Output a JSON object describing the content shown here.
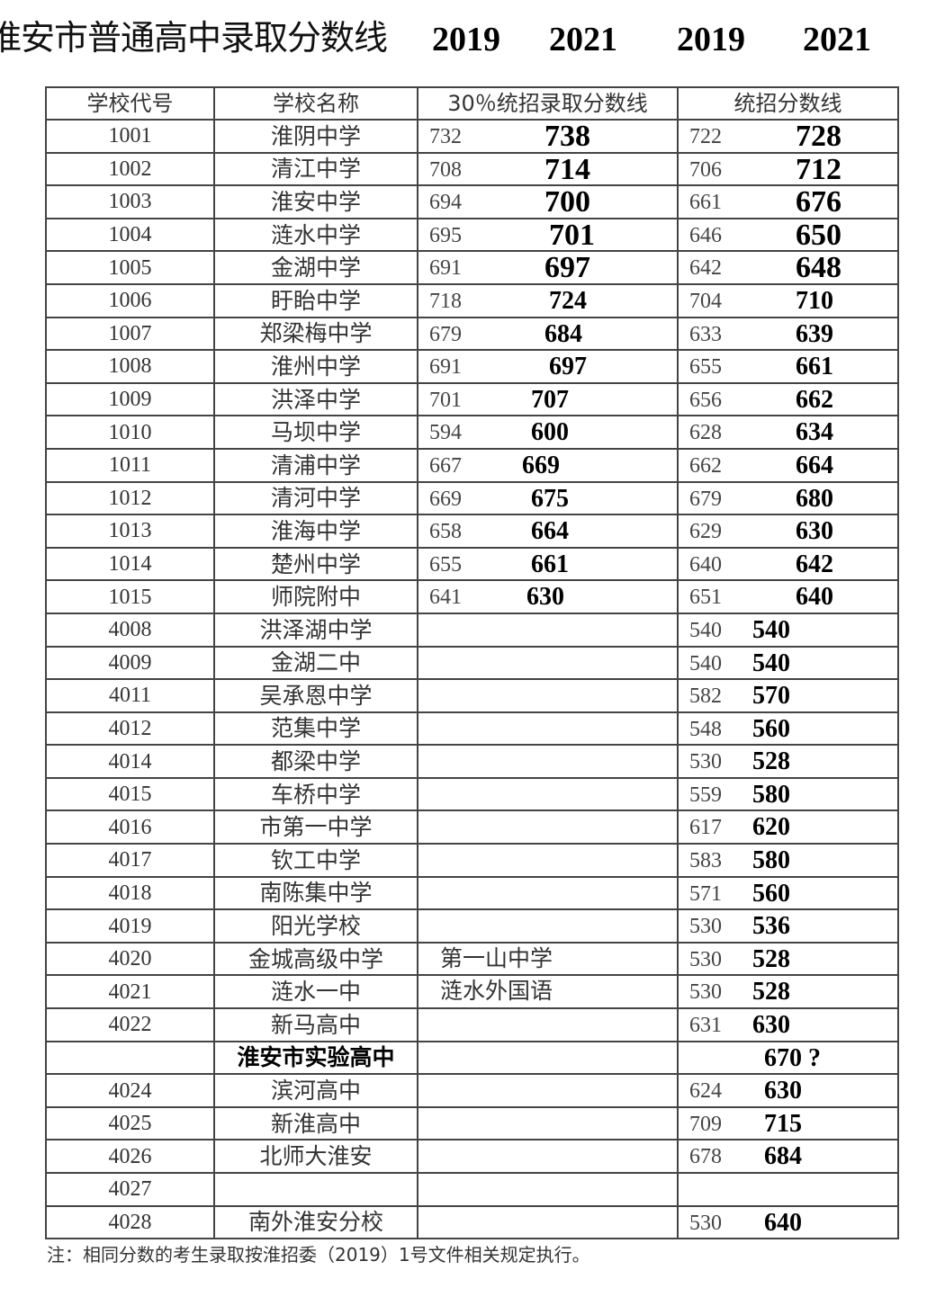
{
  "title": "淮安市普通高中录取分数线",
  "years": [
    "2019",
    "2021",
    "2019",
    "2021"
  ],
  "headers": [
    "学校代号",
    "学校名称",
    "30％统招录取分数线",
    "统招分数线"
  ],
  "rows": [
    {
      "code": "1001",
      "name": "淮阴中学",
      "p30_2019": "732",
      "p30_2021": "738",
      "t_2019": "722",
      "t_2021": "728"
    },
    {
      "code": "1002",
      "name": "清江中学",
      "p30_2019": "708",
      "p30_2021": "714",
      "t_2019": "706",
      "t_2021": "712"
    },
    {
      "code": "1003",
      "name": "淮安中学",
      "p30_2019": "694",
      "p30_2021": "700",
      "t_2019": "661",
      "t_2021": "676"
    },
    {
      "code": "1004",
      "name": "涟水中学",
      "p30_2019": "695",
      "p30_2021": "701",
      "t_2019": "646",
      "t_2021": "650"
    },
    {
      "code": "1005",
      "name": "金湖中学",
      "p30_2019": "691",
      "p30_2021": "697",
      "t_2019": "642",
      "t_2021": "648"
    },
    {
      "code": "1006",
      "name": "盱眙中学",
      "p30_2019": "718",
      "p30_2021": "724",
      "t_2019": "704",
      "t_2021": "710"
    },
    {
      "code": "1007",
      "name": "郑梁梅中学",
      "p30_2019": "679",
      "p30_2021": "684",
      "t_2019": "633",
      "t_2021": "639"
    },
    {
      "code": "1008",
      "name": "淮州中学",
      "p30_2019": "691",
      "p30_2021": "697",
      "t_2019": "655",
      "t_2021": "661"
    },
    {
      "code": "1009",
      "name": "洪泽中学",
      "p30_2019": "701",
      "p30_2021": "707",
      "t_2019": "656",
      "t_2021": "662"
    },
    {
      "code": "1010",
      "name": "马坝中学",
      "p30_2019": "594",
      "p30_2021": "600",
      "t_2019": "628",
      "t_2021": "634"
    },
    {
      "code": "1011",
      "name": "清浦中学",
      "p30_2019": "667",
      "p30_2021": "669",
      "t_2019": "662",
      "t_2021": "664"
    },
    {
      "code": "1012",
      "name": "清河中学",
      "p30_2019": "669",
      "p30_2021": "675",
      "t_2019": "679",
      "t_2021": "680"
    },
    {
      "code": "1013",
      "name": "淮海中学",
      "p30_2019": "658",
      "p30_2021": "664",
      "t_2019": "629",
      "t_2021": "630"
    },
    {
      "code": "1014",
      "name": "楚州中学",
      "p30_2019": "655",
      "p30_2021": "661",
      "t_2019": "640",
      "t_2021": "642"
    },
    {
      "code": "1015",
      "name": "师院附中",
      "p30_2019": "641",
      "p30_2021": "630",
      "t_2019": "651",
      "t_2021": "640"
    },
    {
      "code": "4008",
      "name": "洪泽湖中学",
      "t_2019": "540",
      "t_2021": "540"
    },
    {
      "code": "4009",
      "name": "金湖二中",
      "t_2019": "540",
      "t_2021": "540"
    },
    {
      "code": "4011",
      "name": "吴承恩中学",
      "t_2019": "582",
      "t_2021": "570"
    },
    {
      "code": "4012",
      "name": "范集中学",
      "t_2019": "548",
      "t_2021": "560"
    },
    {
      "code": "4014",
      "name": "都梁中学",
      "t_2019": "530",
      "t_2021": "528"
    },
    {
      "code": "4015",
      "name": "车桥中学",
      "t_2019": "559",
      "t_2021": "580"
    },
    {
      "code": "4016",
      "name": "市第一中学",
      "t_2019": "617",
      "t_2021": "620"
    },
    {
      "code": "4017",
      "name": "钦工中学",
      "t_2019": "583",
      "t_2021": "580"
    },
    {
      "code": "4018",
      "name": "南陈集中学",
      "t_2019": "571",
      "t_2021": "560"
    },
    {
      "code": "4019",
      "name": "阳光学校",
      "t_2019": "530",
      "t_2021": "536"
    },
    {
      "code": "4020",
      "name": "金城高级中学",
      "extra": "第一山中学",
      "t_2019": "530",
      "t_2021": "528"
    },
    {
      "code": "4021",
      "name": "涟水一中",
      "extra": "涟水外国语",
      "t_2019": "530",
      "t_2021": "528"
    },
    {
      "code": "4022",
      "name": "新马高中",
      "t_2019": "631",
      "t_2021": "630"
    },
    {
      "code": "",
      "name": "淮安市实验高中",
      "bold": true,
      "t_2021": "670 ?"
    },
    {
      "code": "4024",
      "name": "滨河高中",
      "t_2019": "624",
      "t_2021": "630"
    },
    {
      "code": "4025",
      "name": "新淮高中",
      "t_2019": "709",
      "t_2021": "715"
    },
    {
      "code": "4026",
      "name": "北师大淮安",
      "t_2019": "678",
      "t_2021": "684"
    },
    {
      "code": "4027",
      "name": ""
    },
    {
      "code": "4028",
      "name": "南外淮安分校",
      "t_2019": "530",
      "t_2021": "640"
    }
  ],
  "note": "注：相同分数的考生录取按淮招委（2019）1号文件相关规定执行。"
}
